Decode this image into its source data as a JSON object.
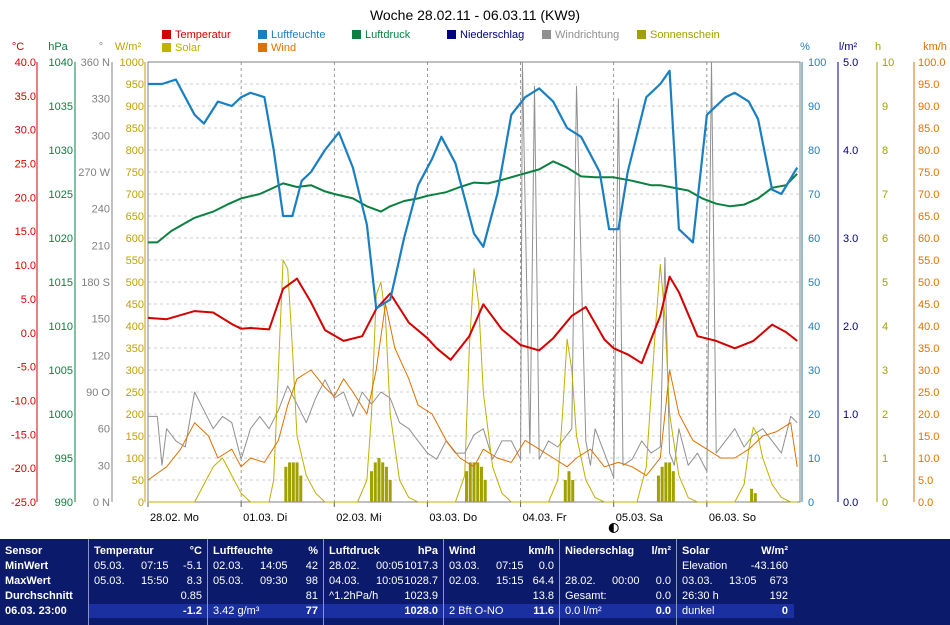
{
  "chart_data": {
    "type": "line",
    "title": "Woche 28.02.11 - 06.03.11 (KW9)",
    "x_ticks": [
      "28.02.",
      "01.03.",
      "02.03.",
      "03.03.",
      "04.03.",
      "05.03.",
      "06.03."
    ],
    "x_day_names": [
      "Mo",
      "Di",
      "Mi",
      "Do",
      "Fr",
      "Sa",
      "So"
    ],
    "legend": [
      {
        "name": "Temperatur",
        "color": "#d40000"
      },
      {
        "name": "Luftfeuchte",
        "color": "#1a7fc0"
      },
      {
        "name": "Luftdruck",
        "color": "#0a8040"
      },
      {
        "name": "Niederschlag",
        "color": "#000080"
      },
      {
        "name": "Windrichtung",
        "color": "#909090"
      },
      {
        "name": "Sonnenschein",
        "color": "#a0a000"
      },
      {
        "name": "Solar",
        "color": "#c0b000"
      },
      {
        "name": "Wind",
        "color": "#e07000"
      }
    ],
    "axes": [
      {
        "unit": "°C",
        "color": "#d40000",
        "range": [
          -25,
          40
        ],
        "ticks": [
          "40.0",
          "35.0",
          "30.0",
          "25.0",
          "20.0",
          "15.0",
          "10.0",
          "5.0",
          "0.0",
          "-5.0",
          "-10.0",
          "-15.0",
          "-20.0",
          "-25.0"
        ]
      },
      {
        "unit": "hPa",
        "color": "#0a8040",
        "range": [
          990,
          1040
        ],
        "ticks": [
          "1040",
          "1035",
          "1030",
          "1025",
          "1020",
          "1015",
          "1010",
          "1005",
          "1000",
          "995",
          "990"
        ]
      },
      {
        "unit": "°",
        "color": "#808080",
        "range": [
          0,
          360
        ],
        "ticks": [
          "360 N",
          "330",
          "300",
          "270 W",
          "240",
          "210",
          "180 S",
          "150",
          "120",
          "90 O",
          "60",
          "30",
          "0 N"
        ]
      },
      {
        "unit": "W/m²",
        "color": "#c0a000",
        "range": [
          0,
          1000
        ],
        "ticks": [
          "1000",
          "950",
          "900",
          "850",
          "800",
          "750",
          "700",
          "650",
          "600",
          "550",
          "500",
          "450",
          "400",
          "350",
          "300",
          "250",
          "200",
          "150",
          "100",
          "50",
          "0"
        ]
      },
      {
        "unit": "%",
        "color": "#1a7fc0",
        "range": [
          0,
          100
        ],
        "ticks": [
          "100",
          "90",
          "80",
          "70",
          "60",
          "50",
          "40",
          "30",
          "20",
          "10",
          "0"
        ]
      },
      {
        "unit": "l/m²",
        "color": "#000080",
        "range": [
          0,
          5
        ],
        "ticks": [
          "5.0",
          "4.0",
          "3.0",
          "2.0",
          "1.0",
          "0.0"
        ]
      },
      {
        "unit": "h",
        "color": "#a0a000",
        "range": [
          0,
          10
        ],
        "ticks": [
          "10",
          "9",
          "8",
          "7",
          "6",
          "5",
          "4",
          "3",
          "2",
          "1",
          "0"
        ]
      },
      {
        "unit": "km/h",
        "color": "#e07000",
        "range": [
          0,
          100
        ],
        "ticks": [
          "100.0",
          "95.0",
          "90.0",
          "85.0",
          "80.0",
          "75.0",
          "70.0",
          "65.0",
          "60.0",
          "55.0",
          "50.0",
          "45.0",
          "40.0",
          "35.0",
          "30.0",
          "25.0",
          "20.0",
          "15.0",
          "10.0",
          "5.0",
          "0.0"
        ]
      }
    ],
    "series": [
      {
        "name": "Temperatur",
        "color": "#d40000",
        "x": [
          0,
          0.2,
          0.5,
          0.7,
          0.9,
          1.0,
          1.1,
          1.3,
          1.45,
          1.6,
          1.75,
          1.9,
          2.1,
          2.3,
          2.45,
          2.6,
          2.8,
          3.0,
          3.1,
          3.25,
          3.45,
          3.6,
          3.8,
          4.0,
          4.2,
          4.35,
          4.55,
          4.7,
          4.9,
          5.0,
          5.15,
          5.3,
          5.5,
          5.6,
          5.7,
          5.9,
          6.1,
          6.3,
          6.5,
          6.7,
          6.85,
          6.97
        ],
        "y": [
          2.2,
          2.0,
          3.2,
          3.0,
          1.3,
          0.6,
          0.7,
          0.5,
          6.5,
          8.0,
          4.5,
          0.4,
          -1.2,
          -0.5,
          3.5,
          5.8,
          1.5,
          -0.8,
          -2.3,
          -4.0,
          -0.5,
          4.2,
          0.5,
          -1.8,
          -2.6,
          -0.8,
          2.5,
          3.8,
          -1.0,
          -2.3,
          -3.2,
          -4.5,
          2.5,
          8.3,
          6.0,
          -0.5,
          -1.2,
          -2.3,
          -1.2,
          1.2,
          0.1,
          -1.2
        ]
      },
      {
        "name": "Luftfeuchte",
        "color": "#1a7fc0",
        "x": [
          0,
          0.15,
          0.3,
          0.5,
          0.6,
          0.75,
          0.9,
          1.0,
          1.1,
          1.25,
          1.35,
          1.45,
          1.55,
          1.65,
          1.75,
          1.9,
          2.05,
          2.2,
          2.35,
          2.45,
          2.6,
          2.75,
          2.9,
          3.05,
          3.15,
          3.3,
          3.5,
          3.6,
          3.75,
          3.9,
          4.05,
          4.2,
          4.35,
          4.5,
          4.65,
          4.85,
          4.95,
          5.05,
          5.15,
          5.35,
          5.5,
          5.6,
          5.7,
          5.85,
          6.0,
          6.2,
          6.3,
          6.45,
          6.55,
          6.7,
          6.8,
          6.97
        ],
        "y": [
          95,
          95,
          96,
          88,
          86,
          91,
          90,
          92,
          93,
          92,
          80,
          65,
          65,
          73,
          75,
          80,
          84,
          76,
          63,
          44,
          46,
          60,
          72,
          78,
          83,
          77,
          61,
          58,
          70,
          88,
          92,
          94,
          91,
          85,
          83,
          75,
          62,
          62,
          75,
          92,
          95,
          98,
          62,
          59,
          88,
          92,
          93,
          91,
          87,
          71,
          70,
          76
        ]
      },
      {
        "name": "Luftdruck",
        "color": "#0a8040",
        "x": [
          0,
          0.1,
          0.25,
          0.5,
          0.7,
          0.85,
          1.0,
          1.2,
          1.45,
          1.6,
          1.75,
          1.9,
          2.0,
          2.2,
          2.35,
          2.5,
          2.6,
          2.75,
          2.9,
          3.0,
          3.2,
          3.35,
          3.5,
          3.65,
          3.8,
          4.0,
          4.2,
          4.35,
          4.5,
          4.65,
          4.8,
          5.0,
          5.2,
          5.4,
          5.5,
          5.6,
          5.8,
          5.95,
          6.1,
          6.25,
          6.4,
          6.55,
          6.7,
          6.85,
          6.97
        ],
        "y": [
          1019.5,
          1019.5,
          1020.8,
          1022.3,
          1023.0,
          1023.8,
          1024.5,
          1025.0,
          1026.2,
          1025.8,
          1026.0,
          1025.3,
          1025.0,
          1024.5,
          1023.6,
          1023.0,
          1023.6,
          1024.2,
          1024.5,
          1024.8,
          1025.2,
          1025.8,
          1026.3,
          1026.2,
          1026.6,
          1027.2,
          1027.8,
          1028.7,
          1028.0,
          1027.0,
          1026.9,
          1026.9,
          1026.5,
          1026.0,
          1026.0,
          1025.8,
          1025.4,
          1024.5,
          1023.9,
          1023.6,
          1023.8,
          1024.5,
          1025.7,
          1026.0,
          1027.3
        ]
      },
      {
        "name": "Windrichtung",
        "color": "#909090",
        "x": [
          0,
          0.1,
          0.15,
          0.2,
          0.3,
          0.4,
          0.5,
          0.6,
          0.7,
          0.8,
          0.9,
          1.0,
          1.1,
          1.2,
          1.3,
          1.4,
          1.5,
          1.6,
          1.7,
          1.8,
          1.9,
          2.0,
          2.1,
          2.2,
          2.3,
          2.4,
          2.5,
          2.6,
          2.7,
          2.8,
          2.9,
          3.0,
          3.1,
          3.2,
          3.3,
          3.4,
          3.5,
          3.6,
          3.7,
          3.8,
          3.9,
          4.0,
          4.02,
          4.1,
          4.15,
          4.2,
          4.3,
          4.4,
          4.5,
          4.55,
          4.6,
          4.7,
          4.75,
          4.8,
          4.9,
          5.0,
          5.05,
          5.1,
          5.2,
          5.3,
          5.4,
          5.5,
          5.55,
          5.6,
          5.65,
          5.7,
          5.8,
          5.9,
          6.0,
          6.05,
          6.1,
          6.2,
          6.3,
          6.4,
          6.5,
          6.6,
          6.7,
          6.8,
          6.9,
          6.97
        ],
        "y": [
          70,
          70,
          30,
          60,
          50,
          45,
          90,
          75,
          60,
          70,
          65,
          35,
          60,
          70,
          60,
          75,
          95,
          80,
          65,
          85,
          100,
          85,
          90,
          70,
          90,
          80,
          90,
          85,
          65,
          60,
          50,
          40,
          35,
          50,
          40,
          40,
          55,
          60,
          35,
          50,
          50,
          35,
          360,
          40,
          340,
          35,
          50,
          45,
          55,
          60,
          340,
          50,
          30,
          60,
          40,
          20,
          330,
          30,
          35,
          50,
          40,
          45,
          200,
          40,
          30,
          60,
          30,
          40,
          25,
          360,
          40,
          50,
          60,
          45,
          55,
          60,
          50,
          40,
          70,
          65
        ]
      },
      {
        "name": "Wind",
        "color": "#e07000",
        "x": [
          0,
          0.2,
          0.35,
          0.5,
          0.65,
          0.75,
          0.9,
          1.0,
          1.1,
          1.25,
          1.4,
          1.5,
          1.6,
          1.75,
          1.9,
          2.0,
          2.1,
          2.2,
          2.35,
          2.45,
          2.55,
          2.65,
          2.8,
          2.9,
          3.05,
          3.2,
          3.35,
          3.5,
          3.6,
          3.75,
          3.9,
          4.05,
          4.2,
          4.35,
          4.5,
          4.6,
          4.75,
          4.9,
          5.05,
          5.2,
          5.35,
          5.5,
          5.6,
          5.7,
          5.85,
          6.0,
          6.15,
          6.3,
          6.45,
          6.6,
          6.75,
          6.9,
          6.97
        ],
        "y": [
          5,
          8,
          12,
          18,
          15,
          10,
          12,
          8,
          10,
          9,
          14,
          22,
          28,
          30,
          26,
          24,
          28,
          25,
          20,
          30,
          45,
          35,
          28,
          22,
          20,
          14,
          10,
          8,
          12,
          10,
          9,
          14,
          12,
          10,
          8,
          10,
          12,
          8,
          9,
          8,
          6,
          10,
          30,
          20,
          14,
          12,
          10,
          10,
          12,
          15,
          16,
          18,
          8
        ]
      },
      {
        "name": "Solar",
        "color": "#c0b000",
        "x": [
          0,
          0.3,
          0.5,
          0.6,
          0.7,
          0.8,
          0.9,
          1.0,
          1.1,
          1.2,
          1.3,
          1.35,
          1.4,
          1.45,
          1.5,
          1.55,
          1.6,
          1.7,
          1.8,
          1.9,
          2.0,
          2.25,
          2.35,
          2.4,
          2.45,
          2.5,
          2.55,
          2.6,
          2.7,
          2.8,
          2.9,
          3.0,
          3.3,
          3.4,
          3.45,
          3.5,
          3.55,
          3.6,
          3.7,
          3.8,
          3.9,
          4.0,
          4.3,
          4.4,
          4.45,
          4.5,
          4.55,
          4.6,
          4.7,
          4.8,
          4.9,
          5.0,
          5.25,
          5.35,
          5.45,
          5.5,
          5.55,
          5.6,
          5.7,
          5.8,
          5.9,
          6.0,
          6.3,
          6.4,
          6.45,
          6.5,
          6.55,
          6.6,
          6.7,
          6.8,
          6.9,
          6.97
        ],
        "y": [
          0,
          0,
          0,
          40,
          80,
          100,
          60,
          20,
          0,
          0,
          0,
          50,
          300,
          550,
          530,
          350,
          150,
          60,
          20,
          0,
          0,
          0,
          50,
          200,
          470,
          500,
          420,
          200,
          50,
          10,
          0,
          0,
          0,
          60,
          350,
          530,
          450,
          250,
          80,
          20,
          0,
          0,
          0,
          50,
          200,
          370,
          300,
          150,
          50,
          10,
          0,
          0,
          0,
          80,
          400,
          540,
          420,
          200,
          60,
          10,
          0,
          0,
          0,
          40,
          120,
          170,
          150,
          100,
          40,
          10,
          0,
          0
        ]
      }
    ],
    "sunshine_bars": {
      "color": "#a0a000",
      "unit": "h",
      "x": [
        1.48,
        1.52,
        1.56,
        1.6,
        1.64,
        2.4,
        2.44,
        2.48,
        2.52,
        2.56,
        2.6,
        3.42,
        3.46,
        3.5,
        3.54,
        3.58,
        3.62,
        4.48,
        4.52,
        4.56,
        5.48,
        5.52,
        5.56,
        5.6,
        5.64,
        6.48,
        6.52
      ],
      "y": [
        0.8,
        0.9,
        0.9,
        0.9,
        0.6,
        0.7,
        0.9,
        1.0,
        0.9,
        0.8,
        0.5,
        0.7,
        0.9,
        0.9,
        0.9,
        0.8,
        0.5,
        0.5,
        0.7,
        0.5,
        0.6,
        0.8,
        0.9,
        0.9,
        0.7,
        0.3,
        0.2
      ]
    },
    "moon_marker_day": 5.0
  },
  "stats": [
    {
      "header": "Sensor",
      "unit": "",
      "rows": [
        [
          "MinWert",
          "",
          ""
        ],
        [
          "MaxWert",
          "",
          ""
        ],
        [
          "Durchschnitt",
          "",
          ""
        ],
        [
          "06.03. 23:00",
          "",
          ""
        ]
      ]
    },
    {
      "header": "Temperatur",
      "unit": "°C",
      "rows": [
        [
          "05.03.",
          "07:15",
          "-5.1"
        ],
        [
          "05.03.",
          "15:50",
          "8.3"
        ],
        [
          "",
          "",
          "0.85"
        ],
        [
          "",
          "",
          "-1.2"
        ]
      ]
    },
    {
      "header": "Luftfeuchte",
      "unit": "%",
      "rows": [
        [
          "02.03.",
          "14:05",
          "42"
        ],
        [
          "05.03.",
          "09:30",
          "98"
        ],
        [
          "",
          "",
          "81"
        ],
        [
          "3.42 g/m³",
          "",
          "77"
        ]
      ]
    },
    {
      "header": "Luftdruck",
      "unit": "hPa",
      "rows": [
        [
          "28.02.",
          "00:05",
          "1017.3"
        ],
        [
          "04.03.",
          "10:05",
          "1028.7"
        ],
        [
          "^1.2hPa/h",
          "",
          "1023.9"
        ],
        [
          "",
          "",
          "1028.0"
        ]
      ]
    },
    {
      "header": "Wind",
      "unit": "km/h",
      "rows": [
        [
          "03.03.",
          "07:15",
          "0.0"
        ],
        [
          "02.03.",
          "15:15",
          "64.4"
        ],
        [
          "",
          "",
          "13.8"
        ],
        [
          "2 Bft O-NO",
          "",
          "11.6"
        ]
      ]
    },
    {
      "header": "Niederschlag",
      "unit": "l/m²",
      "rows": [
        [
          "",
          "",
          ""
        ],
        [
          "28.02.",
          "00:00",
          "0.0"
        ],
        [
          "Gesamt:",
          "",
          "0.0"
        ],
        [
          "0.0 l/m²",
          "",
          "0.0"
        ]
      ]
    },
    {
      "header": "Solar",
      "unit": "W/m²",
      "rows": [
        [
          "Elevation",
          "",
          "-43.160"
        ],
        [
          "03.03.",
          "13:05",
          "673"
        ],
        [
          "26:30 h",
          "",
          "192"
        ],
        [
          "dunkel",
          "",
          "0"
        ]
      ]
    }
  ]
}
